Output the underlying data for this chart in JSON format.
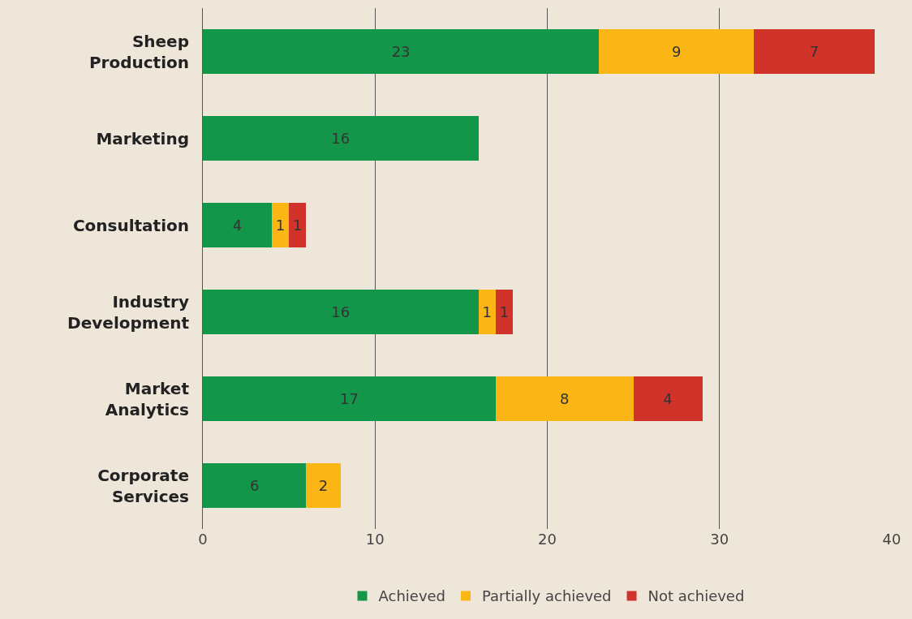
{
  "chart_data": {
    "type": "bar",
    "orientation": "horizontal",
    "stacked": true,
    "categories": [
      "Sheep Production",
      "Marketing",
      "Consultation",
      "Industry Development",
      "Market Analytics",
      "Corporate Services"
    ],
    "series": [
      {
        "name": "Achieved",
        "color": "#14964a",
        "values": [
          23,
          16,
          4,
          16,
          17,
          6
        ]
      },
      {
        "name": "Partially achieved",
        "color": "#fbb615",
        "values": [
          9,
          null,
          1,
          1,
          8,
          2
        ]
      },
      {
        "name": "Not achieved",
        "color": "#d0332a",
        "values": [
          7,
          null,
          1,
          1,
          4,
          null
        ]
      }
    ],
    "xlim": [
      0,
      40
    ],
    "xticks": [
      0,
      10,
      20,
      30,
      40
    ],
    "grid": "x",
    "legend": "bottom",
    "data_labels": true
  }
}
